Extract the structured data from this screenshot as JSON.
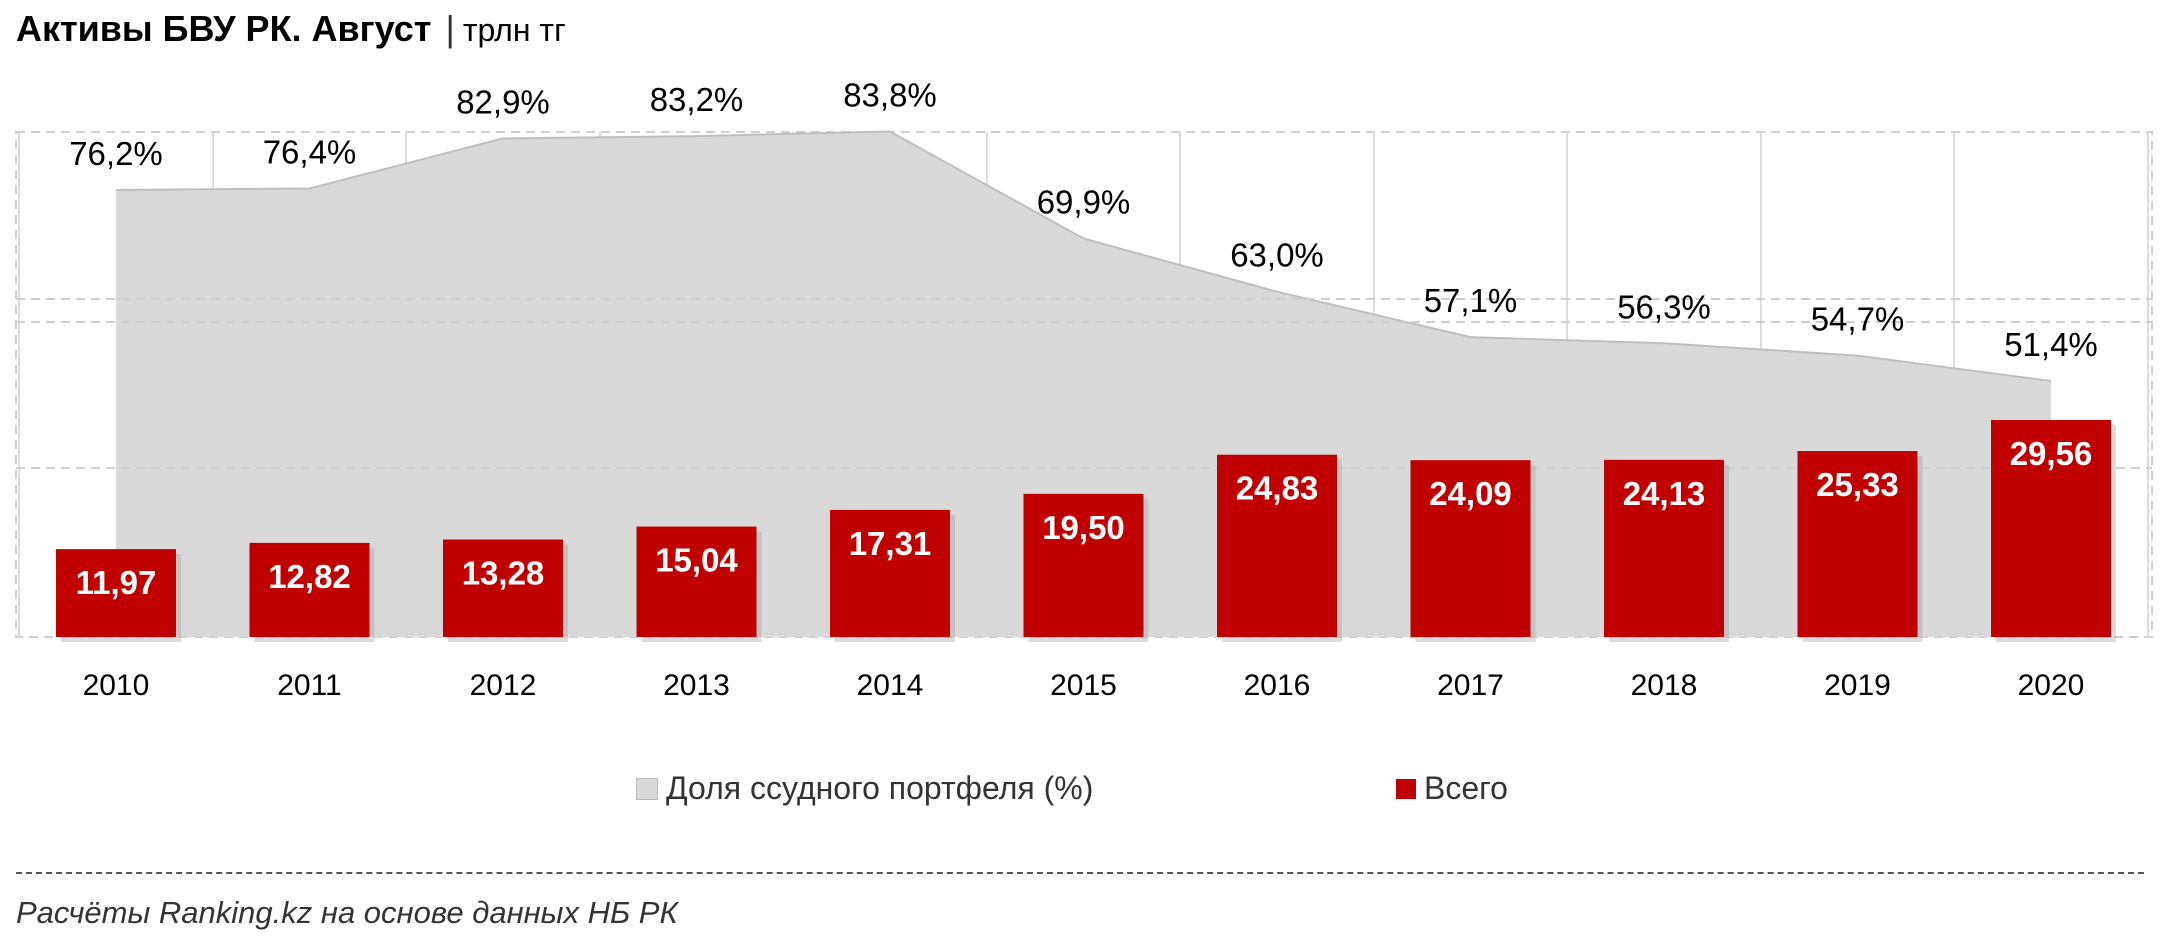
{
  "header": {
    "title": "Активы БВУ РК. Август",
    "separator": "|",
    "unit": "трлн тг"
  },
  "chart_data": {
    "type": "bar",
    "categories": [
      "2010",
      "2011",
      "2012",
      "2013",
      "2014",
      "2015",
      "2016",
      "2017",
      "2018",
      "2019",
      "2020"
    ],
    "series": [
      {
        "name": "Всего",
        "type": "bar",
        "color": "#C00000",
        "values": [
          11.97,
          12.82,
          13.28,
          15.04,
          17.31,
          19.5,
          24.83,
          24.09,
          24.13,
          25.33,
          29.56
        ],
        "labels": [
          "11,97",
          "12,82",
          "13,28",
          "15,04",
          "17,31",
          "19,50",
          "24,83",
          "24,09",
          "24,13",
          "25,33",
          "29,56"
        ]
      },
      {
        "name": "Доля ссудного портфеля (%)",
        "type": "area",
        "color": "#D9D9D9",
        "values": [
          76.2,
          76.4,
          82.9,
          83.2,
          83.8,
          69.9,
          63.0,
          57.1,
          56.3,
          54.7,
          51.4
        ],
        "labels": [
          "76,2%",
          "76,4%",
          "82,9%",
          "83,2%",
          "83,8%",
          "69,9%",
          "63,0%",
          "57,1%",
          "56,3%",
          "54,7%",
          "51,4%"
        ]
      }
    ],
    "grid": true,
    "legend_position": "bottom"
  },
  "legend": {
    "share_label": "Доля ссудного портфеля (%)",
    "total_label": "Всего"
  },
  "footer": {
    "source": "Расчёты Ranking.kz на основе данных НБ РК"
  }
}
